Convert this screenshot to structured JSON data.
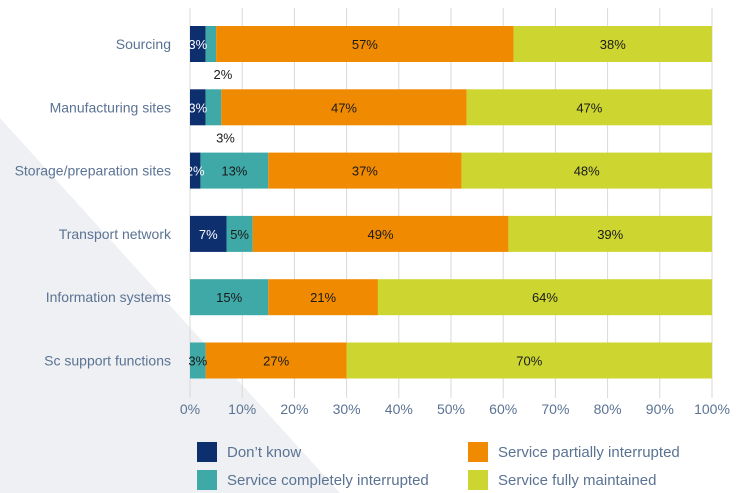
{
  "chart_data": {
    "type": "bar",
    "orientation": "horizontal",
    "stacked": true,
    "categories": [
      "Sourcing",
      "Manufacturing sites",
      "Storage/preparation sites",
      "Transport network",
      "Information systems",
      "Sc support functions"
    ],
    "series": [
      {
        "name": "Don’t know",
        "color": "#0d2f6e",
        "values": [
          3,
          3,
          2,
          7,
          0,
          0
        ],
        "labels": [
          "3%",
          "3%",
          "2%",
          "7%",
          "",
          ""
        ]
      },
      {
        "name": "Service completely interrupted",
        "color": "#3fa9a8",
        "values": [
          2,
          3,
          13,
          5,
          15,
          3
        ],
        "labels": [
          "2%",
          "3%",
          "13%",
          "5%",
          "15%",
          "3%"
        ]
      },
      {
        "name": "Service partially interrupted",
        "color": "#f08a00",
        "values": [
          57,
          47,
          37,
          49,
          21,
          27
        ],
        "labels": [
          "57%",
          "47%",
          "37%",
          "49%",
          "21%",
          "27%"
        ]
      },
      {
        "name": "Service fully maintained",
        "color": "#cdd631",
        "values": [
          38,
          47,
          48,
          39,
          64,
          70
        ],
        "labels": [
          "38%",
          "47%",
          "48%",
          "39%",
          "64%",
          "70%"
        ]
      }
    ],
    "xticks": [
      "0%",
      "10%",
      "20%",
      "30%",
      "40%",
      "50%",
      "60%",
      "70%",
      "80%",
      "90%",
      "100%"
    ],
    "xlim": [
      0,
      100
    ],
    "grid": true,
    "legend_position": "bottom"
  }
}
